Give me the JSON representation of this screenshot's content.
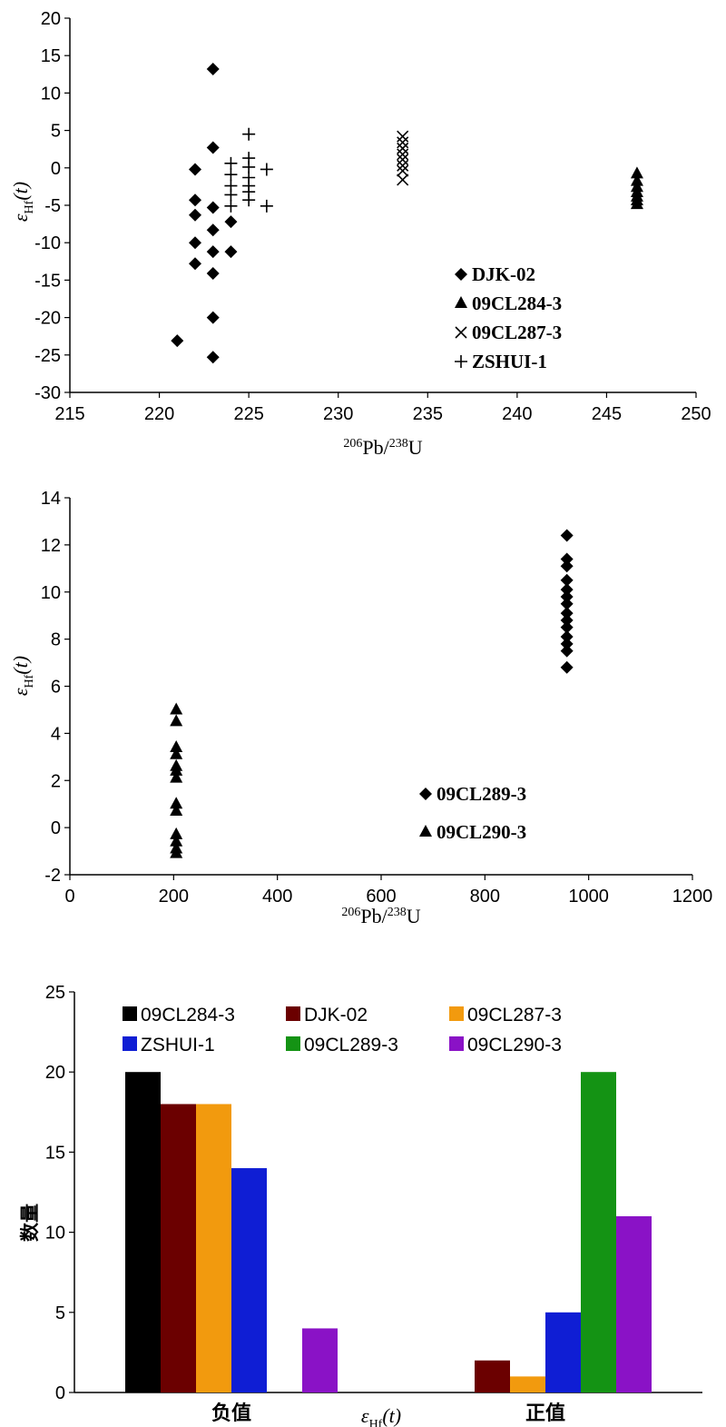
{
  "chart_data": [
    {
      "type": "scatter",
      "xlim": [
        215,
        250
      ],
      "ylim": [
        -30,
        20
      ],
      "xticks": [
        215,
        220,
        225,
        230,
        235,
        240,
        245,
        250
      ],
      "yticks": [
        -30,
        -25,
        -20,
        -15,
        -10,
        -5,
        0,
        5,
        10,
        15,
        20
      ],
      "legend_position": "bottom-right",
      "series": [
        {
          "name": "DJK-02",
          "marker": "diamond",
          "points": [
            [
              223,
              13.2
            ],
            [
              223,
              2.7
            ],
            [
              222,
              -0.2
            ],
            [
              222,
              -4.3
            ],
            [
              223,
              -5.3
            ],
            [
              222,
              -6.3
            ],
            [
              223,
              -8.3
            ],
            [
              224,
              -7.2
            ],
            [
              222,
              -10.0
            ],
            [
              223,
              -11.2
            ],
            [
              224,
              -11.2
            ],
            [
              222,
              -12.8
            ],
            [
              223,
              -14.1
            ],
            [
              223,
              -20.0
            ],
            [
              221,
              -23.1
            ],
            [
              223,
              -25.3
            ]
          ]
        },
        {
          "name": "09CL284-3",
          "marker": "triangle",
          "points": [
            [
              246.7,
              -0.8
            ],
            [
              246.7,
              -1.8
            ],
            [
              246.7,
              -2.6
            ],
            [
              246.7,
              -3.3
            ],
            [
              246.7,
              -3.9
            ],
            [
              246.7,
              -4.4
            ],
            [
              246.7,
              -4.9
            ]
          ]
        },
        {
          "name": "09CL287-3",
          "marker": "cross",
          "points": [
            [
              233.6,
              4.2
            ],
            [
              233.6,
              3.4
            ],
            [
              233.6,
              2.6
            ],
            [
              233.6,
              1.8
            ],
            [
              233.6,
              1.1
            ],
            [
              233.6,
              0.3
            ],
            [
              233.6,
              -0.4
            ],
            [
              233.6,
              -1.6
            ]
          ]
        },
        {
          "name": "ZSHUI-1",
          "marker": "plus",
          "points": [
            [
              224,
              0.6
            ],
            [
              224,
              -0.9
            ],
            [
              224,
              -2.4
            ],
            [
              224,
              -3.6
            ],
            [
              224,
              -5.1
            ],
            [
              225,
              4.5
            ],
            [
              225,
              1.3
            ],
            [
              225,
              0.1
            ],
            [
              225,
              -1.3
            ],
            [
              225,
              -2.4
            ],
            [
              225,
              -3.2
            ],
            [
              225,
              -4.3
            ],
            [
              226,
              -0.2
            ],
            [
              226,
              -5.1
            ]
          ]
        }
      ]
    },
    {
      "type": "scatter",
      "xlim": [
        0,
        1200
      ],
      "ylim": [
        -2,
        14
      ],
      "xticks": [
        0,
        200,
        400,
        600,
        800,
        1000,
        1200
      ],
      "yticks": [
        -2,
        0,
        2,
        4,
        6,
        8,
        10,
        12,
        14
      ],
      "legend_position": "bottom-right",
      "series": [
        {
          "name": "09CL289-3",
          "marker": "diamond",
          "points": [
            [
              958,
              12.4
            ],
            [
              958,
              11.4
            ],
            [
              958,
              11.1
            ],
            [
              958,
              10.5
            ],
            [
              958,
              10.1
            ],
            [
              958,
              9.8
            ],
            [
              958,
              9.5
            ],
            [
              958,
              9.1
            ],
            [
              958,
              8.8
            ],
            [
              958,
              8.5
            ],
            [
              958,
              8.1
            ],
            [
              958,
              7.8
            ],
            [
              958,
              7.5
            ],
            [
              958,
              6.8
            ]
          ]
        },
        {
          "name": "09CL290-3",
          "marker": "triangle",
          "points": [
            [
              205,
              5.0
            ],
            [
              205,
              4.5
            ],
            [
              205,
              3.4
            ],
            [
              205,
              3.1
            ],
            [
              205,
              2.6
            ],
            [
              205,
              2.4
            ],
            [
              205,
              2.1
            ],
            [
              205,
              1.0
            ],
            [
              205,
              0.7
            ],
            [
              205,
              -0.3
            ],
            [
              205,
              -0.6
            ],
            [
              205,
              -0.9
            ],
            [
              205,
              -1.1
            ]
          ]
        }
      ]
    },
    {
      "type": "bar",
      "categories": [
        "负值",
        "正值"
      ],
      "ylabel": "数量",
      "ylim": [
        0,
        25
      ],
      "yticks": [
        0,
        5,
        10,
        15,
        20,
        25
      ],
      "legend_position": "top",
      "series": [
        {
          "name": "09CL284-3",
          "color": "#000000",
          "values": [
            20,
            0
          ]
        },
        {
          "name": "DJK-02",
          "color": "#6b0000",
          "values": [
            18,
            2
          ]
        },
        {
          "name": "09CL287-3",
          "color": "#f29a0e",
          "values": [
            18,
            1
          ]
        },
        {
          "name": "ZSHUI-1",
          "color": "#0f1ed4",
          "values": [
            14,
            5
          ]
        },
        {
          "name": "09CL289-3",
          "color": "#149314",
          "values": [
            0,
            20
          ]
        },
        {
          "name": "09CL290-3",
          "color": "#8a12c6",
          "values": [
            4,
            11
          ]
        }
      ]
    }
  ],
  "labels": {
    "pb_sup1": "206",
    "pb_mid": "Pb/",
    "pb_sup2": "238",
    "pb_end": "U",
    "eps": "ε",
    "hf": "Hf",
    "t": "(t)"
  }
}
